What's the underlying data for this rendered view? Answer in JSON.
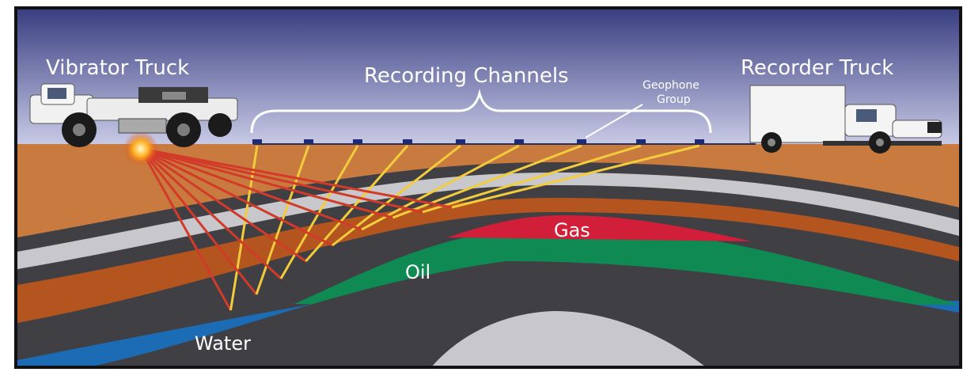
{
  "labels": {
    "vibrator_truck": "Vibrator Truck",
    "recording_channels": "Recording Channels",
    "recorder_truck": "Recorder Truck",
    "geophone_group_line1": "Geophone",
    "geophone_group_line2": "Group",
    "gas": "Gas",
    "oil": "Oil",
    "water": "Water"
  },
  "colors": {
    "sky_top": "#3a3f82",
    "sky_bottom": "#c9cbe6",
    "topsoil": "#c97a3e",
    "dark_layer": "#3f3f44",
    "light_layer": "#c8c8cc",
    "brown_layer": "#b4541e",
    "gas": "#d11f3a",
    "oil": "#0f8a52",
    "water": "#1c6cb5",
    "reflection_ray": "#d23a2a",
    "return_ray": "#f2cc3c"
  }
}
